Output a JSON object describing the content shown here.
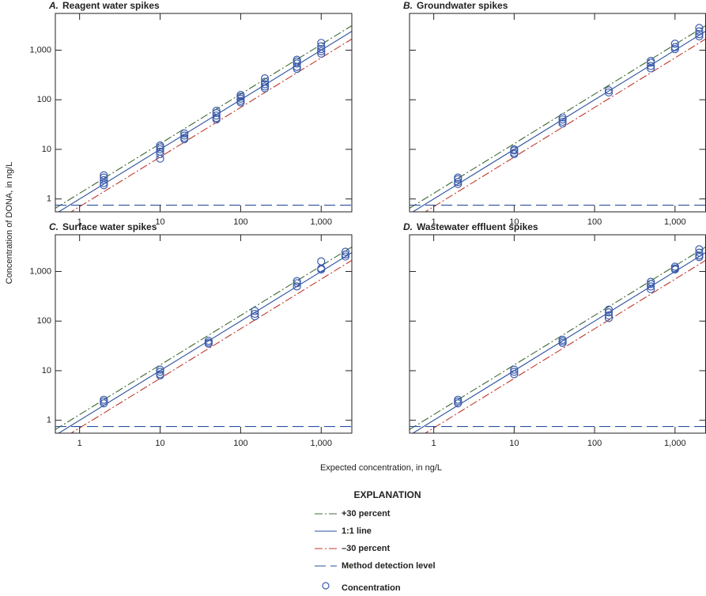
{
  "figure": {
    "y_label": "Concentration of DONA, in ng/L",
    "x_label": "Expected concentration, in ng/L",
    "legend": {
      "title": "EXPLANATION",
      "items": [
        {
          "label": "+30 percent",
          "style": "dashdot",
          "color": "#3d6b34",
          "factor": 1.3
        },
        {
          "label": "1:1 line",
          "style": "solid",
          "color": "#2a4f9e",
          "factor": 1
        },
        {
          "label": "–30 percent",
          "style": "dashdot",
          "color": "#c0392b",
          "factor": 0.7
        },
        {
          "label": "Method detection level",
          "style": "longdash",
          "color": "#2a4f9e",
          "value": 0.75
        },
        {
          "label": "Concentration",
          "style": "circle",
          "color": "#3b5bab"
        }
      ]
    }
  },
  "chart_data": [
    {
      "type": "scatter",
      "label": "A.",
      "title": "Reagent water spikes",
      "log_x": true,
      "log_y": true,
      "show_ytick_labels": true,
      "xlim": [
        0.5,
        2400
      ],
      "ylim": [
        0.55,
        5500
      ],
      "xticks": [
        1,
        10,
        100,
        {
          "value": 1000,
          "label": "1,000"
        }
      ],
      "yticks": [
        1,
        10,
        100,
        {
          "value": 1000,
          "label": "1,000"
        }
      ],
      "x": [
        2,
        2,
        2,
        2,
        2,
        10,
        10,
        10,
        10,
        10,
        10,
        20,
        20,
        20,
        20,
        50,
        50,
        50,
        50,
        50,
        100,
        100,
        100,
        100,
        100,
        200,
        200,
        200,
        200,
        200,
        500,
        500,
        500,
        500,
        500,
        1000,
        1000,
        1000,
        1000,
        1000
      ],
      "y": [
        3,
        2.7,
        2.4,
        2.1,
        1.9,
        12,
        11,
        10,
        9,
        8,
        6.5,
        21,
        19,
        17,
        16,
        60,
        54,
        48,
        43,
        40,
        125,
        115,
        105,
        95,
        88,
        270,
        230,
        205,
        185,
        170,
        640,
        590,
        540,
        460,
        420,
        1400,
        1200,
        1050,
        950,
        850
      ]
    },
    {
      "type": "scatter",
      "label": "B.",
      "title": "Groundwater spikes",
      "log_x": true,
      "log_y": true,
      "show_ytick_labels": false,
      "xlim": [
        0.5,
        2400
      ],
      "ylim": [
        0.55,
        5500
      ],
      "xticks": [
        1,
        10,
        100,
        {
          "value": 1000,
          "label": "1,000"
        }
      ],
      "yticks": [
        1,
        10,
        100,
        {
          "value": 1000,
          "label": "1,000"
        }
      ],
      "x": [
        2,
        2,
        2,
        2,
        10,
        10,
        10,
        10,
        40,
        40,
        40,
        40,
        150,
        150,
        500,
        500,
        500,
        500,
        1000,
        1000,
        1000,
        2000,
        2000,
        2000,
        2000
      ],
      "y": [
        2.7,
        2.5,
        2.2,
        2.0,
        10,
        9.5,
        8.5,
        8,
        44,
        40,
        36,
        33,
        155,
        140,
        610,
        560,
        480,
        430,
        1350,
        1150,
        1050,
        2800,
        2400,
        2100,
        1900
      ]
    },
    {
      "type": "scatter",
      "label": "C.",
      "title": "Surface water spikes",
      "log_x": true,
      "log_y": true,
      "show_ytick_labels": true,
      "xlim": [
        0.5,
        2400
      ],
      "ylim": [
        0.55,
        5500
      ],
      "xticks": [
        1,
        10,
        100,
        {
          "value": 1000,
          "label": "1,000"
        }
      ],
      "yticks": [
        1,
        10,
        100,
        {
          "value": 1000,
          "label": "1,000"
        }
      ],
      "x": [
        2,
        2,
        2,
        10,
        10,
        10,
        10,
        40,
        40,
        40,
        150,
        150,
        150,
        500,
        500,
        500,
        1000,
        1000,
        1000,
        2000,
        2000,
        2000
      ],
      "y": [
        2.6,
        2.4,
        2.2,
        10.5,
        9.5,
        8.5,
        8,
        40,
        37,
        35,
        160,
        140,
        125,
        640,
        580,
        500,
        1600,
        1150,
        1100,
        2500,
        2200,
        2000
      ]
    },
    {
      "type": "scatter",
      "label": "D.",
      "title": "Wastewater effluent spikes",
      "log_x": true,
      "log_y": true,
      "show_ytick_labels": false,
      "xlim": [
        0.5,
        2400
      ],
      "ylim": [
        0.55,
        5500
      ],
      "xticks": [
        1,
        10,
        100,
        {
          "value": 1000,
          "label": "1,000"
        }
      ],
      "yticks": [
        1,
        10,
        100,
        {
          "value": 1000,
          "label": "1,000"
        }
      ],
      "x": [
        2,
        2,
        2,
        10,
        10,
        10,
        40,
        40,
        40,
        150,
        150,
        150,
        150,
        500,
        500,
        500,
        500,
        1000,
        1000,
        1000,
        2000,
        2000,
        2000,
        2000
      ],
      "y": [
        2.6,
        2.4,
        2.2,
        10.5,
        9.5,
        8.5,
        42,
        39,
        36,
        170,
        150,
        130,
        115,
        620,
        560,
        500,
        440,
        1250,
        1150,
        1100,
        2800,
        2400,
        2100,
        1950
      ]
    }
  ]
}
